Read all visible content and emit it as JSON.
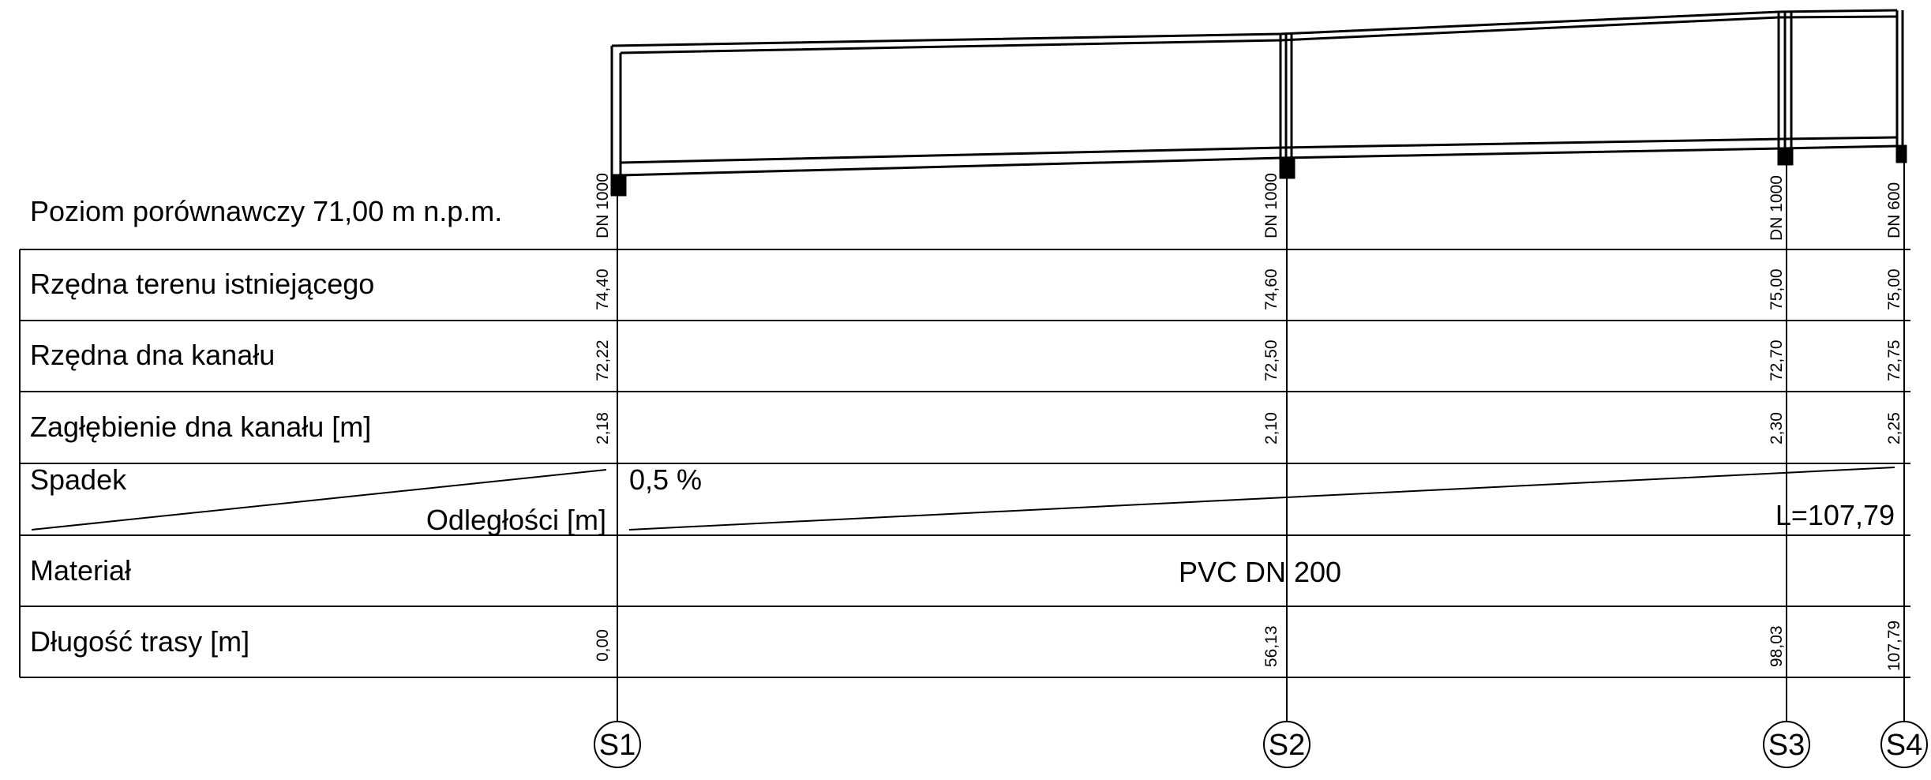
{
  "reference_level": "Poziom porównawczy 71,00 m n.p.m.",
  "rows": {
    "terrain": "Rzędna terenu istniejącego",
    "invert": "Rzędna dna kanału",
    "depth": "Zagłębienie dna kanału [m]",
    "slope": "Spadek",
    "distances": "Odległości [m]",
    "material": "Materiał",
    "route_length": "Długość trasy [m]"
  },
  "segment": {
    "slope": "0,5 %",
    "length": "L=107,79",
    "material": "PVC DN 200"
  },
  "wells": [
    {
      "id": "S1",
      "diameter": "DN 1000",
      "terrain": "74,40",
      "invert": "72,22",
      "depth": "2,18",
      "chainage": "0,00"
    },
    {
      "id": "S2",
      "diameter": "DN 1000",
      "terrain": "74,60",
      "invert": "72,50",
      "depth": "2,10",
      "chainage": "56,13"
    },
    {
      "id": "S3",
      "diameter": "DN 1000",
      "terrain": "75,00",
      "invert": "72,70",
      "depth": "2,30",
      "chainage": "98,03"
    },
    {
      "id": "S4",
      "diameter": "DN 600",
      "terrain": "75,00",
      "invert": "72,75",
      "depth": "2,25",
      "chainage": "107,79"
    }
  ]
}
